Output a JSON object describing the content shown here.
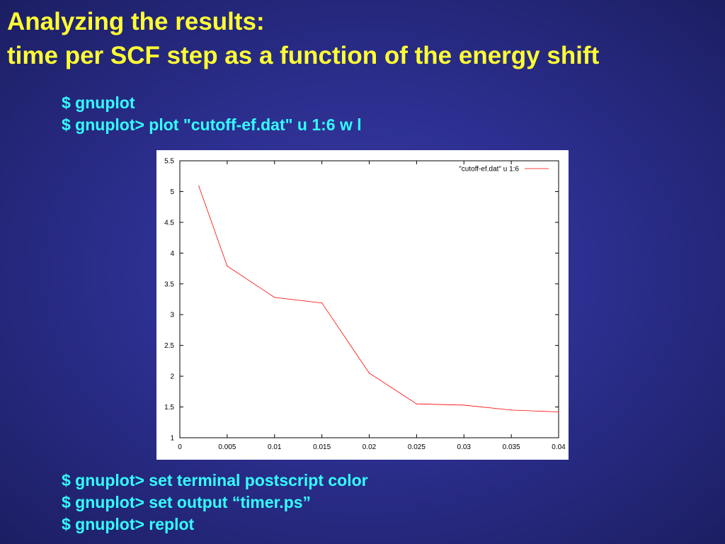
{
  "slide": {
    "title_line1": "Analyzing the results:",
    "title_line2": "time per SCF step as a function of the energy shift",
    "commands_top": [
      "$ gnuplot",
      "$ gnuplot> plot \"cutoff-ef.dat\" u 1:6 w l"
    ],
    "commands_bottom": [
      "$ gnuplot> set terminal postscript color",
      "$ gnuplot> set output “timer.ps”",
      "$ gnuplot> replot"
    ]
  },
  "chart_data": {
    "type": "line",
    "title": "",
    "xlabel": "",
    "ylabel": "",
    "xlim": [
      0,
      0.04
    ],
    "ylim": [
      1,
      5.5
    ],
    "x_ticks": [
      0,
      0.005,
      0.01,
      0.015,
      0.02,
      0.025,
      0.03,
      0.035,
      0.04
    ],
    "x_tick_labels": [
      "0",
      "0.005",
      "0.01",
      "0.015",
      "0.02",
      "0.025",
      "0.03",
      "0.035",
      "0.04"
    ],
    "y_ticks": [
      1,
      1.5,
      2,
      2.5,
      3,
      3.5,
      4,
      4.5,
      5,
      5.5
    ],
    "y_tick_labels": [
      "1",
      "1.5",
      "2",
      "2.5",
      "3",
      "3.5",
      "4",
      "4.5",
      "5",
      "5.5"
    ],
    "legend_position": "top-right",
    "grid": false,
    "series": [
      {
        "name": "\"cutoff-ef.dat\" u 1:6",
        "color": "#ff0000",
        "x": [
          0.002,
          0.005,
          0.01,
          0.015,
          0.02,
          0.025,
          0.03,
          0.035,
          0.04
        ],
        "y": [
          5.09,
          3.79,
          3.28,
          3.19,
          2.05,
          1.55,
          1.53,
          1.45,
          1.42
        ]
      }
    ]
  }
}
